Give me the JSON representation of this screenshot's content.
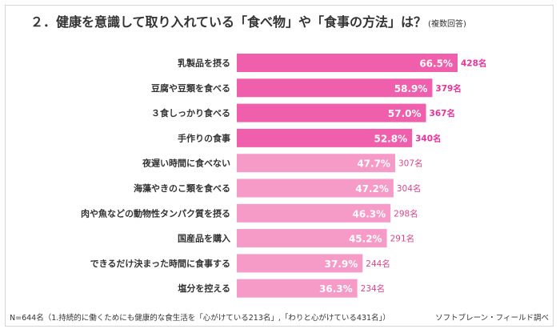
{
  "title": "２．健康を意識して取り入れている「食べ物」や「食事の方法」は？",
  "title_note": "(複数回答)",
  "footer": {
    "note": "N=644名（1.持続的に働くためにも健康的な食生活を「心がけている213名」,「わりと心がけている431名」）",
    "source": "ソフトブレーン・フィールド調べ"
  },
  "colors": {
    "bar_dark": "#f05fac",
    "bar_light": "#f69ac8",
    "count_dark": "#e8329a",
    "count_light": "#d6478f",
    "percent_label": "#ffffff"
  },
  "chart_data": {
    "type": "bar",
    "orientation": "horizontal",
    "categories": [
      "乳製品を摂る",
      "豆腐や豆類を食べる",
      "３食しっかり食べる",
      "手作りの食事",
      "夜遅い時間に食べない",
      "海藻やきのこ類を食べる",
      "肉や魚などの動物性タンパク質を摂る",
      "国産品を購入",
      "できるだけ決まった時間に食事する",
      "塩分を控える"
    ],
    "values": [
      66.5,
      58.9,
      57.0,
      52.8,
      47.7,
      47.2,
      46.3,
      45.2,
      37.9,
      36.3
    ],
    "value_labels": [
      "66.5%",
      "58.9%",
      "57.0%",
      "52.8%",
      "47.7%",
      "47.2%",
      "46.3%",
      "45.2%",
      "37.9%",
      "36.3%"
    ],
    "counts": [
      "428名",
      "379名",
      "367名",
      "340名",
      "307名",
      "304名",
      "298名",
      "291名",
      "244名",
      "234名"
    ],
    "highlighted_top": 4,
    "xlim": [
      0,
      70
    ],
    "grid": false,
    "legend": "none"
  }
}
